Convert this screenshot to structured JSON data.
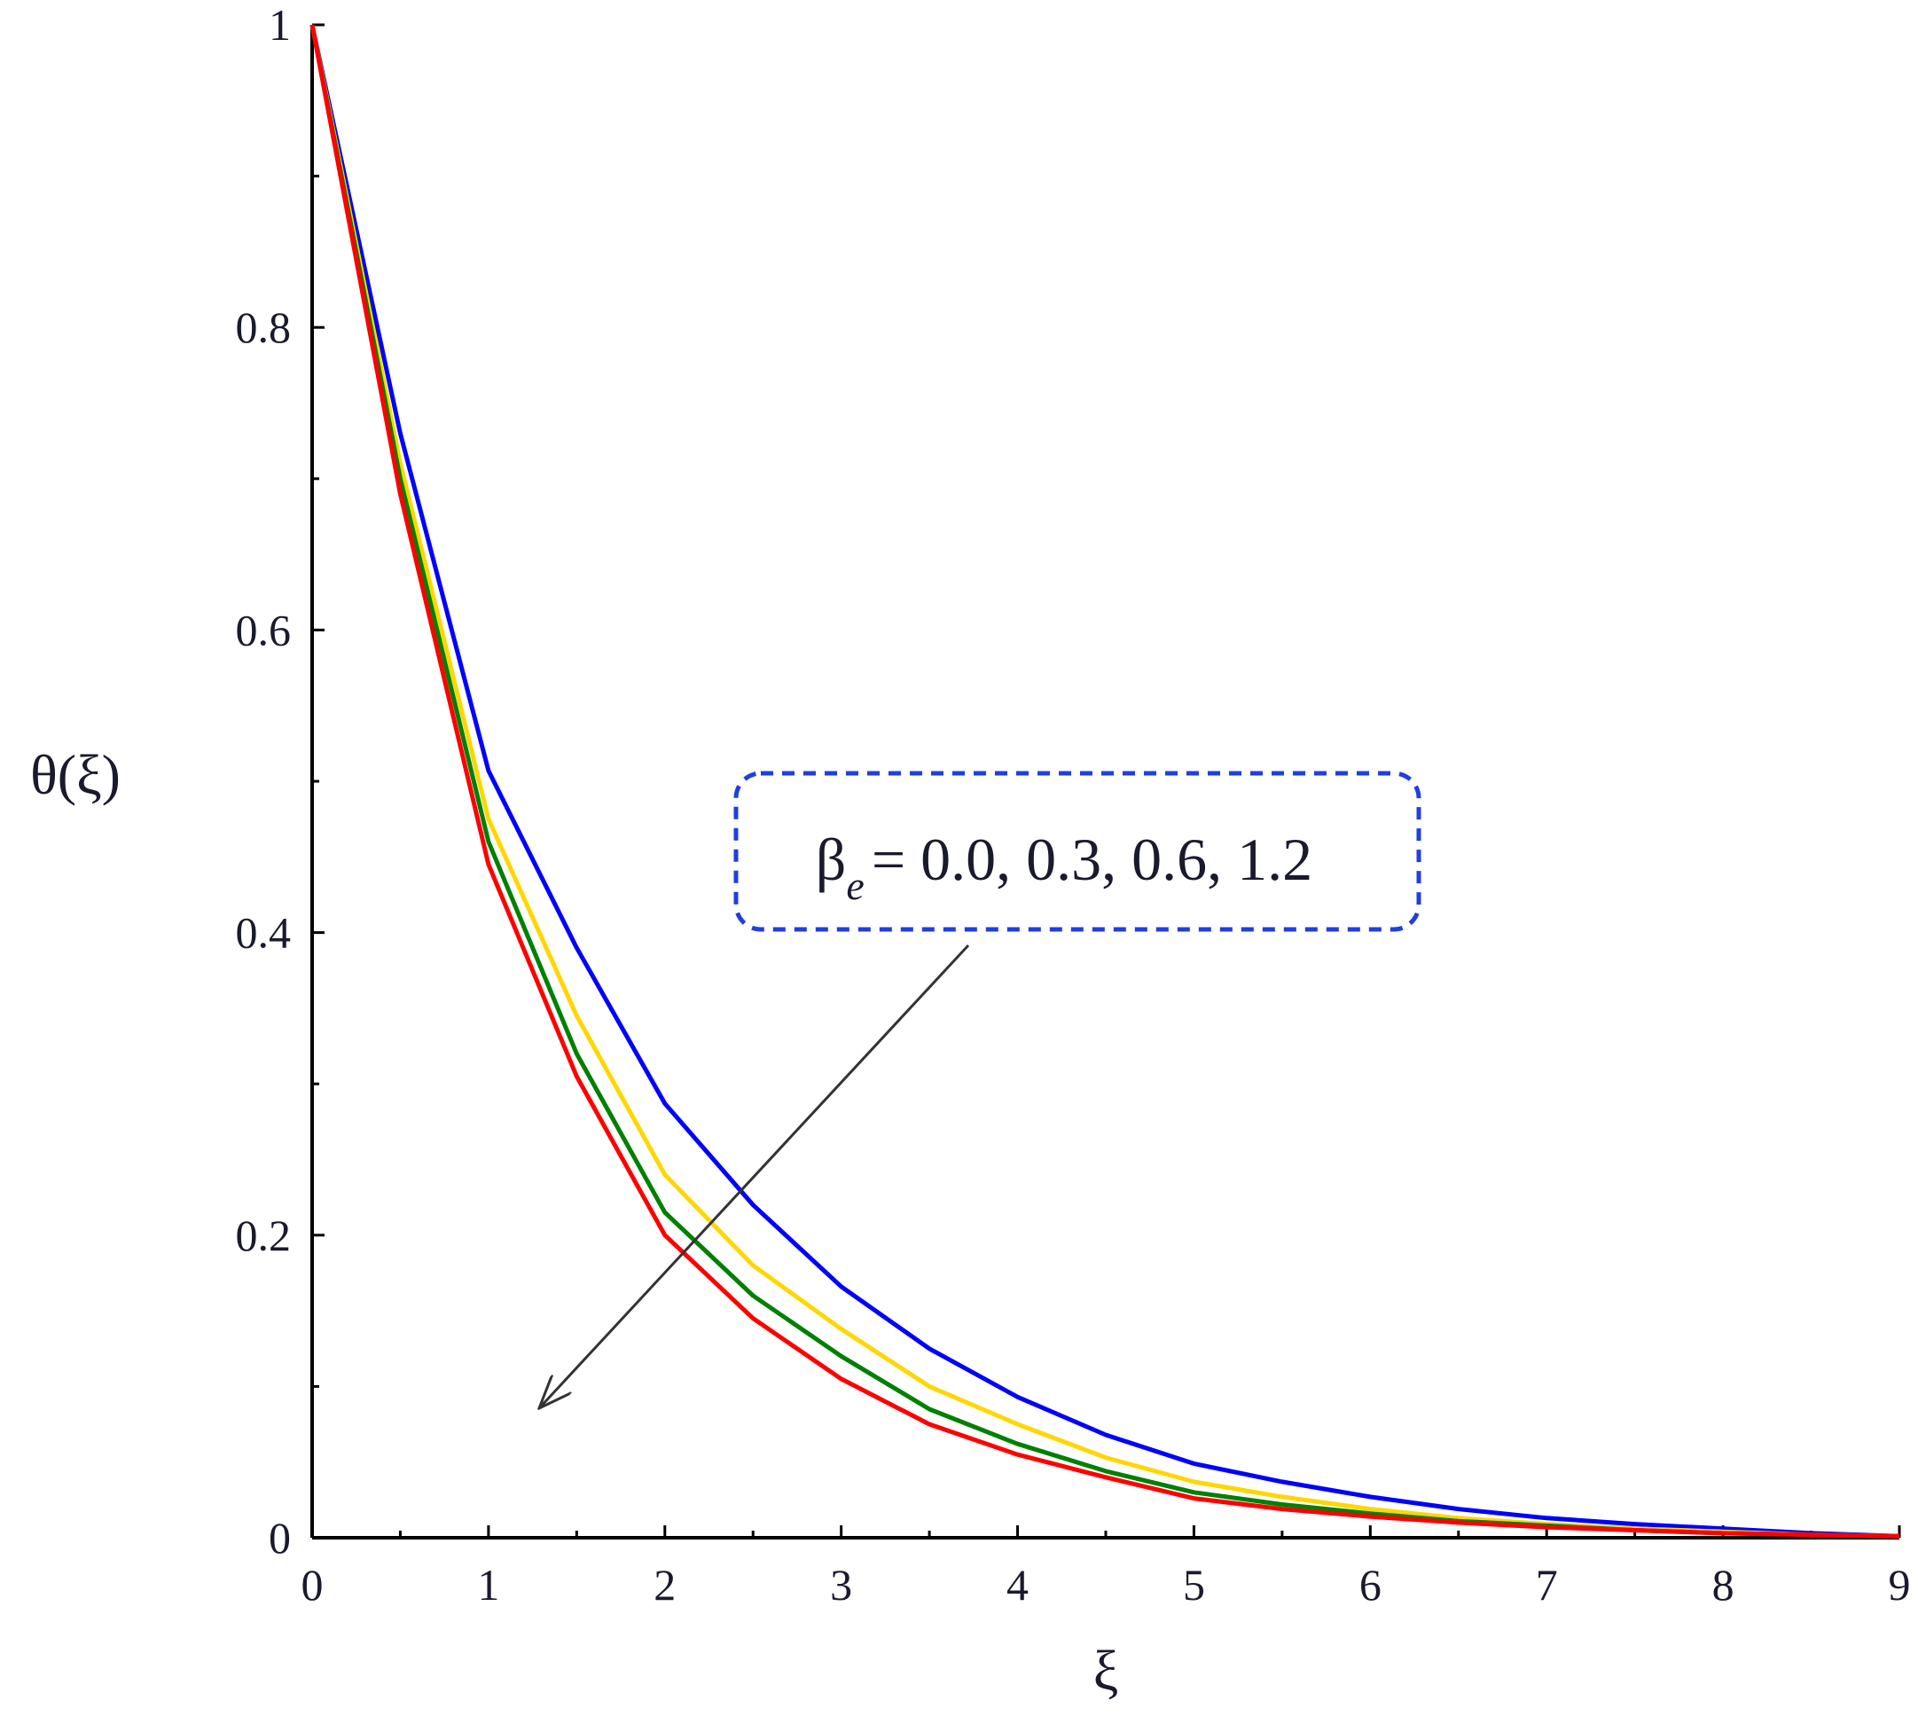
{
  "chart_data": {
    "type": "line",
    "xlabel": "ξ",
    "ylabel": "θ(ξ)",
    "annotation": {
      "symbol": "β",
      "subscript": "e",
      "text": "= 0.0, 0.3, 0.6, 1.2"
    },
    "x": [
      0,
      0.5,
      1,
      1.5,
      2,
      2.5,
      3,
      3.5,
      4,
      4.5,
      5,
      5.5,
      6,
      6.5,
      7,
      7.5,
      8,
      8.5,
      9
    ],
    "series": [
      {
        "color": "#0000ff",
        "values": [
          1,
          0.73,
          0.507,
          0.39,
          0.287,
          0.22,
          0.166,
          0.125,
          0.093,
          0.068,
          0.049,
          0.037,
          0.027,
          0.019,
          0.013,
          0.009,
          0.006,
          0.003,
          0.001
        ]
      },
      {
        "color": "#ffd700",
        "values": [
          1,
          0.71,
          0.475,
          0.345,
          0.24,
          0.18,
          0.138,
          0.1,
          0.075,
          0.053,
          0.037,
          0.027,
          0.019,
          0.013,
          0.009,
          0.006,
          0.004,
          0.002,
          0.001
        ]
      },
      {
        "color": "#008000",
        "values": [
          1,
          0.7,
          0.46,
          0.32,
          0.215,
          0.16,
          0.12,
          0.085,
          0.062,
          0.044,
          0.03,
          0.022,
          0.016,
          0.011,
          0.008,
          0.005,
          0.003,
          0.002,
          0.001
        ]
      },
      {
        "color": "#ff0000",
        "values": [
          1,
          0.69,
          0.445,
          0.305,
          0.2,
          0.145,
          0.105,
          0.075,
          0.055,
          0.04,
          0.026,
          0.019,
          0.014,
          0.01,
          0.007,
          0.005,
          0.003,
          0.002,
          0.001
        ]
      }
    ],
    "xlim": [
      0,
      9
    ],
    "ylim": [
      0,
      1
    ],
    "xticks": [
      0,
      1,
      2,
      3,
      4,
      5,
      6,
      7,
      8,
      9
    ],
    "yticks": [
      0,
      0.2,
      0.4,
      0.6,
      0.8,
      1
    ],
    "xminorticks": [
      0.5,
      1.5,
      2.5,
      3.5,
      4.5,
      5.5,
      6.5,
      7.5,
      8.5
    ],
    "yminorticks": [
      0.1,
      0.3,
      0.5,
      0.7,
      0.9
    ]
  }
}
